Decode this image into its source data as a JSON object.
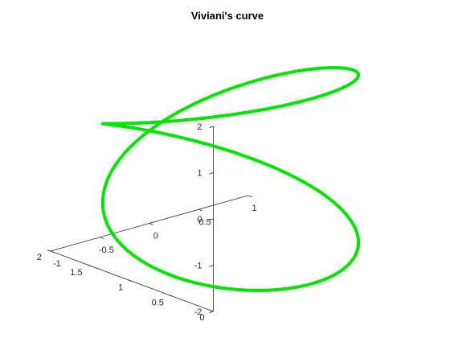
{
  "chart_data": {
    "type": "line",
    "title": "Viviani's curve",
    "xlabel": "",
    "ylabel": "",
    "zlabel": "",
    "projection": "3d",
    "grid": false,
    "axes": {
      "x": {
        "range": [
          0,
          2
        ],
        "ticks": [
          0,
          0.5,
          1,
          1.5,
          2
        ],
        "tick_labels": [
          "0",
          "0.5",
          "1",
          "1.5",
          "2"
        ]
      },
      "y": {
        "range": [
          -1,
          1
        ],
        "ticks": [
          -1,
          -0.5,
          0,
          0.5,
          1
        ],
        "tick_labels": [
          "-1",
          "-0.5",
          "0",
          "0.5",
          "1"
        ]
      },
      "z": {
        "range": [
          -2,
          2
        ],
        "ticks": [
          -2,
          -1,
          0,
          1,
          2
        ],
        "tick_labels": [
          "-2",
          "-1",
          "0",
          "1",
          "2"
        ]
      }
    },
    "series": [
      {
        "color": "#00e400",
        "equation": {
          "x": "1 + cos(t)",
          "y": "sin(t)",
          "z": "2 sin(t/2)"
        },
        "t_range": [
          0,
          12.566
        ],
        "samples": 400
      }
    ]
  }
}
